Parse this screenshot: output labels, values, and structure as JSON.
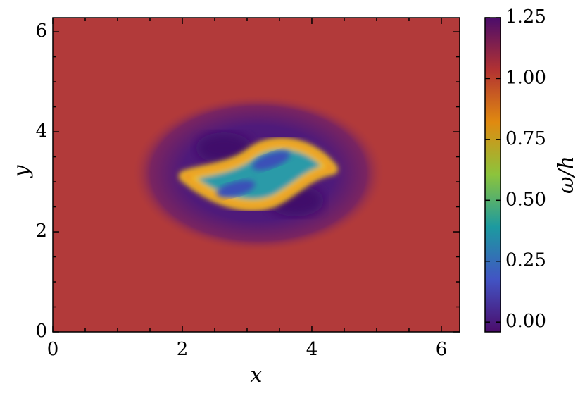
{
  "chart_data": {
    "type": "heatmap",
    "xlabel": "x",
    "ylabel": "y",
    "xlim": [
      0,
      6.283
    ],
    "ylim": [
      0,
      6.283
    ],
    "xticks": [
      0,
      2,
      4,
      6
    ],
    "yticks": [
      0,
      2,
      4,
      6
    ],
    "xminorticks": [
      0.5,
      1,
      1.5,
      2.5,
      3,
      3.5,
      4.5,
      5,
      5.5
    ],
    "yminorticks": [
      0.5,
      1,
      1.5,
      2.5,
      3,
      3.5,
      4.5,
      5,
      5.5
    ],
    "colorbar": {
      "label": "ω/h",
      "lim": [
        -0.04,
        1.25
      ],
      "ticks": [
        {
          "value": 0,
          "label": "0.00"
        },
        {
          "value": 0.25,
          "label": "0.25"
        },
        {
          "value": 0.5,
          "label": "0.50"
        },
        {
          "value": 0.75,
          "label": "0.75"
        },
        {
          "value": 1,
          "label": "1.00"
        },
        {
          "value": 1.25,
          "label": "1.25"
        }
      ]
    },
    "colormap": [
      "#4b0c6b",
      "#4254c4",
      "#1c9aa0",
      "#8cc43c",
      "#e08a10",
      "#b23232",
      "#4b0c6b"
    ]
  }
}
